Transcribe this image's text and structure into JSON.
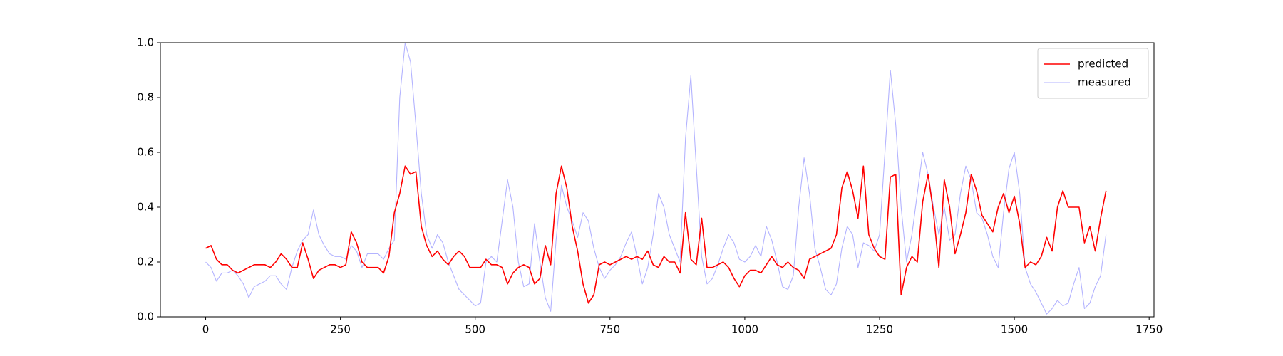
{
  "chart_data": {
    "type": "line",
    "x": [
      0,
      10,
      20,
      30,
      40,
      50,
      60,
      70,
      80,
      90,
      100,
      110,
      120,
      130,
      140,
      150,
      160,
      170,
      180,
      190,
      200,
      210,
      220,
      230,
      240,
      250,
      260,
      270,
      280,
      290,
      300,
      310,
      320,
      330,
      340,
      350,
      360,
      370,
      380,
      390,
      400,
      410,
      420,
      430,
      440,
      450,
      460,
      470,
      480,
      490,
      500,
      510,
      520,
      530,
      540,
      550,
      560,
      570,
      580,
      590,
      600,
      610,
      620,
      630,
      640,
      650,
      660,
      670,
      680,
      690,
      700,
      710,
      720,
      730,
      740,
      750,
      760,
      770,
      780,
      790,
      800,
      810,
      820,
      830,
      840,
      850,
      860,
      870,
      880,
      890,
      900,
      910,
      920,
      930,
      940,
      950,
      960,
      970,
      980,
      990,
      1000,
      1010,
      1020,
      1030,
      1040,
      1050,
      1060,
      1070,
      1080,
      1090,
      1100,
      1110,
      1120,
      1130,
      1140,
      1150,
      1160,
      1170,
      1180,
      1190,
      1200,
      1210,
      1220,
      1230,
      1240,
      1250,
      1260,
      1270,
      1280,
      1290,
      1300,
      1310,
      1320,
      1330,
      1340,
      1350,
      1360,
      1370,
      1380,
      1390,
      1400,
      1410,
      1420,
      1430,
      1440,
      1450,
      1460,
      1470,
      1480,
      1490,
      1500,
      1510,
      1520,
      1530,
      1540,
      1550,
      1560,
      1570,
      1580,
      1590,
      1600,
      1610,
      1620,
      1630,
      1640,
      1650,
      1660,
      1670
    ],
    "series": [
      {
        "name": "predicted",
        "color": "#ff0000",
        "width": 1.6,
        "values": [
          0.25,
          0.26,
          0.21,
          0.19,
          0.19,
          0.17,
          0.16,
          0.17,
          0.18,
          0.19,
          0.19,
          0.19,
          0.18,
          0.2,
          0.23,
          0.21,
          0.18,
          0.18,
          0.27,
          0.21,
          0.14,
          0.17,
          0.18,
          0.19,
          0.19,
          0.18,
          0.19,
          0.31,
          0.27,
          0.2,
          0.18,
          0.18,
          0.18,
          0.16,
          0.22,
          0.38,
          0.45,
          0.55,
          0.52,
          0.53,
          0.33,
          0.26,
          0.22,
          0.24,
          0.21,
          0.19,
          0.22,
          0.24,
          0.22,
          0.18,
          0.18,
          0.18,
          0.21,
          0.19,
          0.19,
          0.18,
          0.12,
          0.16,
          0.18,
          0.19,
          0.18,
          0.12,
          0.14,
          0.26,
          0.19,
          0.45,
          0.55,
          0.47,
          0.33,
          0.24,
          0.12,
          0.05,
          0.08,
          0.19,
          0.2,
          0.19,
          0.2,
          0.21,
          0.22,
          0.21,
          0.22,
          0.21,
          0.24,
          0.19,
          0.18,
          0.22,
          0.2,
          0.2,
          0.16,
          0.38,
          0.21,
          0.19,
          0.36,
          0.18,
          0.18,
          0.19,
          0.2,
          0.18,
          0.14,
          0.11,
          0.15,
          0.17,
          0.17,
          0.16,
          0.19,
          0.22,
          0.19,
          0.18,
          0.2,
          0.18,
          0.17,
          0.14,
          0.21,
          0.22,
          0.23,
          0.24,
          0.25,
          0.3,
          0.47,
          0.53,
          0.46,
          0.36,
          0.55,
          0.3,
          0.25,
          0.22,
          0.21,
          0.51,
          0.52,
          0.08,
          0.18,
          0.22,
          0.2,
          0.42,
          0.52,
          0.38,
          0.18,
          0.5,
          0.4,
          0.23,
          0.3,
          0.38,
          0.52,
          0.46,
          0.37,
          0.34,
          0.31,
          0.4,
          0.45,
          0.38,
          0.44,
          0.34,
          0.18,
          0.2,
          0.19,
          0.22,
          0.29,
          0.24,
          0.4,
          0.46,
          0.4,
          0.4,
          0.4,
          0.27,
          0.33,
          0.24,
          0.36,
          0.46
        ]
      },
      {
        "name": "measured",
        "color": "#b3b3ff",
        "width": 1.1,
        "values": [
          0.2,
          0.18,
          0.13,
          0.16,
          0.16,
          0.17,
          0.15,
          0.12,
          0.07,
          0.11,
          0.12,
          0.13,
          0.15,
          0.15,
          0.12,
          0.1,
          0.18,
          0.24,
          0.28,
          0.3,
          0.39,
          0.3,
          0.26,
          0.23,
          0.22,
          0.22,
          0.21,
          0.26,
          0.24,
          0.18,
          0.23,
          0.23,
          0.23,
          0.21,
          0.25,
          0.28,
          0.8,
          1.0,
          0.93,
          0.7,
          0.45,
          0.3,
          0.25,
          0.3,
          0.27,
          0.2,
          0.15,
          0.1,
          0.08,
          0.06,
          0.04,
          0.05,
          0.2,
          0.22,
          0.2,
          0.35,
          0.5,
          0.4,
          0.2,
          0.11,
          0.12,
          0.34,
          0.2,
          0.07,
          0.02,
          0.28,
          0.48,
          0.4,
          0.35,
          0.29,
          0.38,
          0.35,
          0.25,
          0.18,
          0.14,
          0.17,
          0.19,
          0.22,
          0.27,
          0.31,
          0.22,
          0.12,
          0.18,
          0.3,
          0.45,
          0.4,
          0.3,
          0.25,
          0.2,
          0.65,
          0.88,
          0.55,
          0.22,
          0.12,
          0.14,
          0.19,
          0.25,
          0.3,
          0.27,
          0.21,
          0.2,
          0.22,
          0.26,
          0.22,
          0.33,
          0.28,
          0.2,
          0.11,
          0.1,
          0.15,
          0.4,
          0.58,
          0.45,
          0.25,
          0.18,
          0.1,
          0.08,
          0.12,
          0.25,
          0.33,
          0.3,
          0.18,
          0.27,
          0.26,
          0.24,
          0.3,
          0.6,
          0.9,
          0.7,
          0.4,
          0.2,
          0.3,
          0.45,
          0.6,
          0.52,
          0.4,
          0.3,
          0.4,
          0.28,
          0.3,
          0.45,
          0.55,
          0.5,
          0.38,
          0.36,
          0.3,
          0.22,
          0.18,
          0.38,
          0.54,
          0.6,
          0.45,
          0.18,
          0.12,
          0.09,
          0.05,
          0.01,
          0.03,
          0.06,
          0.04,
          0.05,
          0.12,
          0.18,
          0.03,
          0.05,
          0.11,
          0.15,
          0.3
        ]
      }
    ],
    "xlim": [
      -84,
      1759
    ],
    "ylim": [
      0,
      1
    ],
    "xticks": [
      0,
      250,
      500,
      750,
      1000,
      1250,
      1500,
      1750
    ],
    "yticks": [
      {
        "value": 0,
        "label": "0.0"
      },
      0.2,
      0.4,
      0.6,
      0.8,
      {
        "value": 1,
        "label": "1.0"
      }
    ],
    "legend": "upper right"
  }
}
